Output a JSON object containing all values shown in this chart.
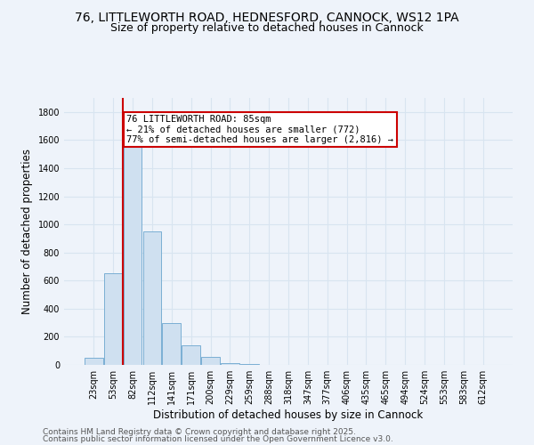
{
  "title": "76, LITTLEWORTH ROAD, HEDNESFORD, CANNOCK, WS12 1PA",
  "subtitle": "Size of property relative to detached houses in Cannock",
  "xlabel": "Distribution of detached houses by size in Cannock",
  "ylabel": "Number of detached properties",
  "categories": [
    "23sqm",
    "53sqm",
    "82sqm",
    "112sqm",
    "141sqm",
    "171sqm",
    "200sqm",
    "229sqm",
    "259sqm",
    "288sqm",
    "318sqm",
    "347sqm",
    "377sqm",
    "406sqm",
    "435sqm",
    "465sqm",
    "494sqm",
    "524sqm",
    "553sqm",
    "583sqm",
    "612sqm"
  ],
  "values": [
    50,
    650,
    1800,
    950,
    300,
    140,
    60,
    15,
    5,
    2,
    1,
    0,
    0,
    0,
    0,
    0,
    0,
    0,
    0,
    0,
    0
  ],
  "bar_color": "#cfe0f0",
  "bar_edge_color": "#7aafd4",
  "red_line_x": 1.5,
  "annotation_text": "76 LITTLEWORTH ROAD: 85sqm\n← 21% of detached houses are smaller (772)\n77% of semi-detached houses are larger (2,816) →",
  "annotation_box_color": "#ffffff",
  "annotation_box_edge": "#cc0000",
  "ylim": [
    0,
    1900
  ],
  "yticks": [
    0,
    200,
    400,
    600,
    800,
    1000,
    1200,
    1400,
    1600,
    1800
  ],
  "footer1": "Contains HM Land Registry data © Crown copyright and database right 2025.",
  "footer2": "Contains public sector information licensed under the Open Government Licence v3.0.",
  "background_color": "#eef3fa",
  "grid_color": "#d8e4f0",
  "title_fontsize": 10,
  "subtitle_fontsize": 9,
  "axis_label_fontsize": 8.5,
  "tick_fontsize": 7,
  "annotation_fontsize": 7.5,
  "footer_fontsize": 6.5
}
